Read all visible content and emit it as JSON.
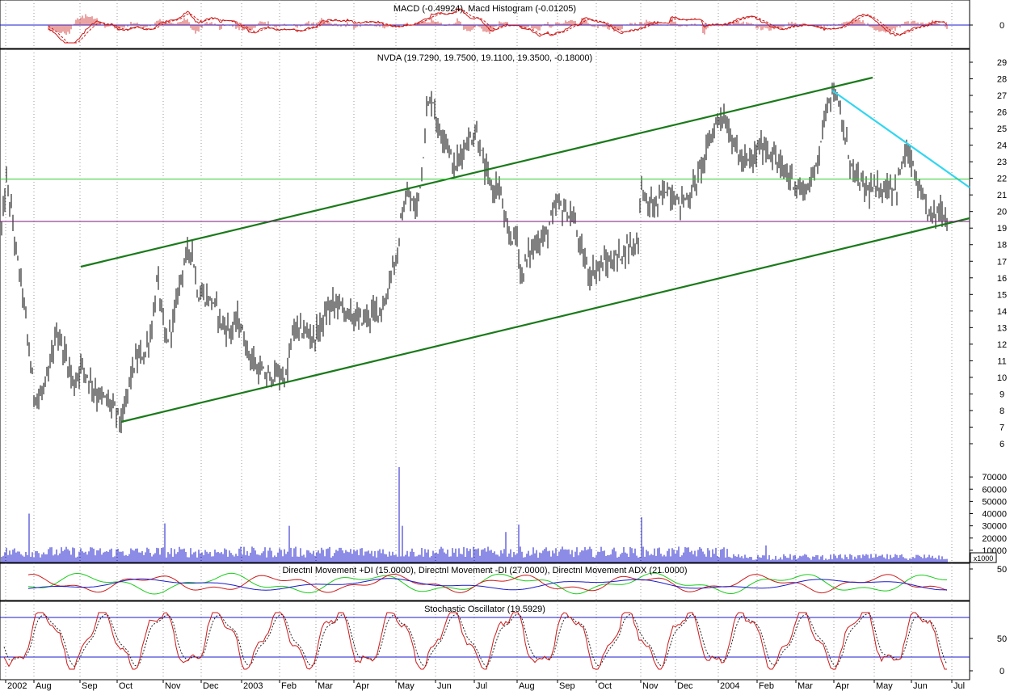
{
  "colors": {
    "background": "#ffffff",
    "grid": "#9a9a9a",
    "price_bars": "#000000",
    "channel_lines": "#1a7a1a",
    "downtrend_line": "#33d6f0",
    "support_line": "#7a1a7a",
    "resistance_line": "#33cc33",
    "volume_bars": "#1a1acc",
    "macd_line": "#cc1a1a",
    "di_plus": "#1acc1a",
    "di_minus": "#cc1a1a",
    "adx": "#1a1acc",
    "stoch_k": "#cc1a1a",
    "stoch_d": "#222222",
    "stoch_ref": "#1a1acc"
  },
  "chart_data": [
    {
      "type": "line",
      "title": "MACD (-0.49924), Macd Histogram (-0.01205)",
      "ylim": [
        -1,
        1
      ],
      "yticks": [
        "0"
      ],
      "grid": true
    },
    {
      "type": "bar",
      "title": "NVDA (19.7290, 19.7500, 19.1100, 19.3500, -0.18000)",
      "ylim": [
        5.5,
        29.5
      ],
      "yticks": [
        "6",
        "7",
        "8",
        "9",
        "10",
        "11",
        "12",
        "13",
        "14",
        "15",
        "16",
        "17",
        "18",
        "19",
        "20",
        "21",
        "22",
        "23",
        "24",
        "25",
        "26",
        "27",
        "28",
        "29"
      ],
      "grid": true,
      "annotations": [
        {
          "kind": "lower-channel",
          "start": [
            "2002-10",
            7.2
          ],
          "end": [
            "2004-07",
            19.5
          ]
        },
        {
          "kind": "upper-channel",
          "start": [
            "2002-08",
            16.6
          ],
          "end": [
            "2004-06",
            28.2
          ]
        },
        {
          "kind": "downtrend",
          "start": [
            "2004-04",
            27.4
          ],
          "end": [
            "2004-07",
            21.5
          ]
        },
        {
          "kind": "horizontal",
          "value": 21.95
        },
        {
          "kind": "horizontal",
          "value": 19.4
        }
      ]
    },
    {
      "type": "bar",
      "ylim": [
        0,
        80000
      ],
      "yticks": [
        "10000",
        "20000",
        "30000",
        "40000",
        "50000",
        "60000",
        "70000"
      ],
      "multiplier_label": "x1000",
      "grid": true
    },
    {
      "type": "line",
      "title": "Directnl Movement +DI (15.0000), Directnl Movement -DI (27.0000), Directnl Movement ADX (21.0000)",
      "series": [
        {
          "name": "Directnl Movement +DI"
        },
        {
          "name": "Directnl Movement -DI"
        },
        {
          "name": "Directnl Movement ADX"
        }
      ],
      "ylim": [
        0,
        60
      ],
      "yticks": [
        "50"
      ],
      "grid": true
    },
    {
      "type": "line",
      "title": "Stochastic Oscillator (19.5929)",
      "ylim": [
        -5,
        105
      ],
      "yticks": [
        "0",
        "50"
      ],
      "reference_levels": [
        20,
        80
      ],
      "grid": true
    }
  ],
  "x_axis": {
    "labels": [
      "2002",
      "Aug",
      "Sep",
      "Oct",
      "Nov",
      "Dec",
      "2003",
      "Feb",
      "Mar",
      "Apr",
      "May",
      "Jun",
      "Jul",
      "Aug",
      "Sep",
      "Oct",
      "Nov",
      "Dec",
      "2004",
      "Feb",
      "Mar",
      "Apr",
      "May",
      "Jun",
      "Jul"
    ]
  }
}
